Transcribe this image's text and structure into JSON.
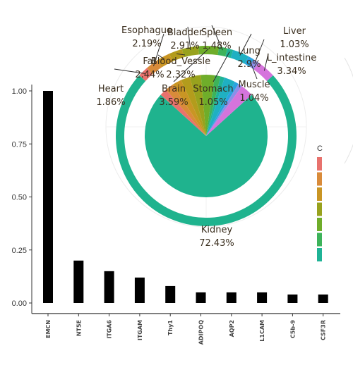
{
  "chart_data": [
    {
      "type": "bar",
      "categories": [
        "EMCN",
        "NT5E",
        "ITGA6",
        "ITGAM",
        "Thy1",
        "ADIPOQ",
        "AQP2",
        "L1CAM",
        "C5b-9",
        "CSF3R"
      ],
      "values": [
        1.0,
        0.2,
        0.15,
        0.12,
        0.08,
        0.05,
        0.05,
        0.05,
        0.04,
        0.04
      ],
      "ylim": [
        0,
        1.0
      ],
      "yticks": [
        0.0,
        0.25,
        0.5,
        0.75,
        1.0
      ],
      "ytick_labels": [
        "0.00",
        "0.25",
        "0.50",
        "0.75",
        "1.00"
      ],
      "bar_color": "#000000",
      "grid": false
    },
    {
      "type": "pie",
      "labels": [
        "Kidney",
        "Heart",
        "Esophague",
        "Fat",
        "Blood_Vessle",
        "Bladder",
        "Brain",
        "Spleen",
        "Stomach",
        "Lung",
        "Muscle",
        "Liver",
        "L_intestine"
      ],
      "values": [
        72.43,
        1.86,
        2.19,
        2.44,
        2.32,
        2.91,
        3.59,
        1.48,
        1.05,
        2.9,
        1.04,
        1.03,
        3.34
      ],
      "value_labels": [
        "72.43%",
        "1.86%",
        "2.19%",
        "2.44%",
        "2.32%",
        "2.91%",
        "3.59%",
        "1.48%",
        "1.05%",
        "2.9%",
        "1.04%",
        "1.03%",
        "3.34%"
      ],
      "colors": [
        "#1fb38e",
        "#e8726d",
        "#d98b3a",
        "#c99524",
        "#b39c1c",
        "#98a21d",
        "#6fad2a",
        "#3db35a",
        "#1fb396",
        "#1fb0c2",
        "#29a3df",
        "#8a8fe8",
        "#d574dc"
      ],
      "outer_ring": true
    }
  ],
  "legend": {
    "title_fragment": "C",
    "swatches": [
      "#e8726d",
      "#d98b3a",
      "#c99524",
      "#98a21d",
      "#6fad2a",
      "#3db35a",
      "#1fb396"
    ]
  }
}
